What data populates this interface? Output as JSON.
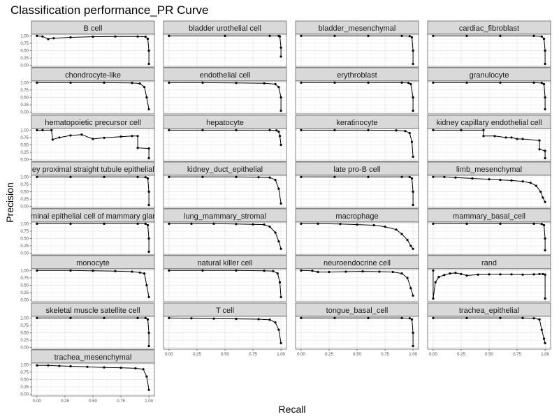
{
  "chart_data": {
    "type": "line",
    "title": "Classification performance_PR Curve",
    "xlabel": "Recall",
    "ylabel": "Precision",
    "xlim": [
      0,
      1
    ],
    "ylim": [
      0,
      1
    ],
    "x_ticks": [
      "0.00",
      "0.25",
      "0.50",
      "0.75",
      "1.00"
    ],
    "y_ticks": [
      "0.00",
      "0.25",
      "0.50",
      "0.75",
      "1.00"
    ],
    "grid": true,
    "facets": [
      {
        "name": "B cell",
        "points": [
          [
            0,
            1
          ],
          [
            0.05,
            0.98
          ],
          [
            0.1,
            0.89
          ],
          [
            0.15,
            0.92
          ],
          [
            0.3,
            0.95
          ],
          [
            0.5,
            0.97
          ],
          [
            0.7,
            0.98
          ],
          [
            0.9,
            0.98
          ],
          [
            0.97,
            0.97
          ],
          [
            0.99,
            0.9
          ],
          [
            1,
            0.5
          ],
          [
            1,
            0.05
          ]
        ]
      },
      {
        "name": "bladder urothelial cell",
        "points": [
          [
            0,
            1
          ],
          [
            0.5,
            1
          ],
          [
            0.9,
            1
          ],
          [
            0.98,
            1
          ],
          [
            0.99,
            0.98
          ],
          [
            1,
            0.6
          ],
          [
            1,
            0.3
          ]
        ]
      },
      {
        "name": "bladder_mesenchymal",
        "points": [
          [
            0,
            1
          ],
          [
            0.3,
            1
          ],
          [
            0.6,
            1
          ],
          [
            0.9,
            1
          ],
          [
            0.97,
            0.99
          ],
          [
            0.99,
            0.95
          ],
          [
            1,
            0.5
          ],
          [
            1,
            0.05
          ]
        ]
      },
      {
        "name": "cardiac_fibroblast",
        "points": [
          [
            0,
            1
          ],
          [
            0.3,
            1
          ],
          [
            0.6,
            1
          ],
          [
            0.9,
            1
          ],
          [
            0.97,
            0.98
          ],
          [
            0.99,
            0.9
          ],
          [
            1,
            0.5
          ],
          [
            1,
            0.05
          ]
        ]
      },
      {
        "name": "chondrocyte-like",
        "points": [
          [
            0,
            1
          ],
          [
            0.3,
            1
          ],
          [
            0.6,
            1
          ],
          [
            0.85,
            0.99
          ],
          [
            0.92,
            0.97
          ],
          [
            0.96,
            0.85
          ],
          [
            0.98,
            0.5
          ],
          [
            1,
            0.1
          ]
        ]
      },
      {
        "name": "endothelial cell",
        "points": [
          [
            0,
            1
          ],
          [
            0.3,
            1
          ],
          [
            0.6,
            0.99
          ],
          [
            0.85,
            0.98
          ],
          [
            0.95,
            0.95
          ],
          [
            0.98,
            0.85
          ],
          [
            1,
            0.5
          ],
          [
            1,
            0.05
          ]
        ]
      },
      {
        "name": "erythroblast",
        "points": [
          [
            0,
            1
          ],
          [
            0.3,
            1
          ],
          [
            0.6,
            1
          ],
          [
            0.9,
            1
          ],
          [
            0.96,
            0.99
          ],
          [
            0.98,
            0.95
          ],
          [
            1,
            0.5
          ],
          [
            1,
            0.05
          ]
        ]
      },
      {
        "name": "granulocyte",
        "points": [
          [
            0,
            1
          ],
          [
            0.3,
            1
          ],
          [
            0.6,
            1
          ],
          [
            0.9,
            1
          ],
          [
            0.97,
            0.99
          ],
          [
            0.99,
            0.95
          ],
          [
            1,
            0.5
          ],
          [
            1,
            0.1
          ]
        ]
      },
      {
        "name": "hematopoietic precursor cell",
        "points": [
          [
            0,
            1
          ],
          [
            0.05,
            1
          ],
          [
            0.13,
            1
          ],
          [
            0.14,
            0.68
          ],
          [
            0.2,
            0.75
          ],
          [
            0.3,
            0.82
          ],
          [
            0.4,
            0.85
          ],
          [
            0.5,
            0.7
          ],
          [
            0.6,
            0.74
          ],
          [
            0.75,
            0.78
          ],
          [
            0.85,
            0.8
          ],
          [
            0.9,
            0.8
          ],
          [
            0.9,
            0.4
          ],
          [
            1,
            0.38
          ],
          [
            1,
            0.05
          ]
        ]
      },
      {
        "name": "hepatocyte",
        "points": [
          [
            0,
            1
          ],
          [
            0.3,
            1
          ],
          [
            0.6,
            1
          ],
          [
            0.9,
            1
          ],
          [
            0.96,
            0.99
          ],
          [
            0.98,
            0.95
          ],
          [
            0.99,
            0.8
          ],
          [
            1,
            0.5
          ]
        ]
      },
      {
        "name": "keratinocyte",
        "points": [
          [
            0,
            1
          ],
          [
            0.3,
            1
          ],
          [
            0.6,
            1
          ],
          [
            0.85,
            0.99
          ],
          [
            0.93,
            0.97
          ],
          [
            0.97,
            0.9
          ],
          [
            0.99,
            0.6
          ],
          [
            1,
            0.1
          ]
        ]
      },
      {
        "name": "kidney capillary endothelial cell",
        "points": [
          [
            0,
            1
          ],
          [
            0.25,
            1
          ],
          [
            0.45,
            1
          ],
          [
            0.45,
            0.8
          ],
          [
            0.55,
            0.8
          ],
          [
            0.65,
            0.75
          ],
          [
            0.7,
            0.75
          ],
          [
            0.75,
            0.7
          ],
          [
            0.8,
            0.7
          ],
          [
            0.95,
            0.65
          ],
          [
            0.95,
            0.35
          ],
          [
            1,
            0.3
          ],
          [
            1,
            0.05
          ]
        ]
      },
      {
        "name": "kidney proximal straight tubule epithelial cell",
        "points": [
          [
            0,
            1
          ],
          [
            0.3,
            1
          ],
          [
            0.6,
            1
          ],
          [
            0.9,
            1
          ],
          [
            0.97,
            0.99
          ],
          [
            0.99,
            0.95
          ],
          [
            1,
            0.5
          ],
          [
            1,
            0.05
          ]
        ]
      },
      {
        "name": "kidney_duct_epithelial",
        "points": [
          [
            0,
            1
          ],
          [
            0.3,
            1
          ],
          [
            0.6,
            1
          ],
          [
            0.8,
            0.99
          ],
          [
            0.9,
            0.98
          ],
          [
            0.95,
            0.9
          ],
          [
            0.98,
            0.6
          ],
          [
            1,
            0.1
          ]
        ]
      },
      {
        "name": "late pro-B cell",
        "points": [
          [
            0,
            1
          ],
          [
            0.3,
            1
          ],
          [
            0.6,
            1
          ],
          [
            0.9,
            1
          ],
          [
            0.97,
            1
          ],
          [
            0.99,
            0.95
          ],
          [
            1,
            0.5
          ],
          [
            1,
            0.05
          ]
        ]
      },
      {
        "name": "limb_mesenchymal",
        "points": [
          [
            0,
            1
          ],
          [
            0.1,
            1
          ],
          [
            0.2,
            0.98
          ],
          [
            0.35,
            0.95
          ],
          [
            0.5,
            0.92
          ],
          [
            0.6,
            0.9
          ],
          [
            0.7,
            0.88
          ],
          [
            0.8,
            0.85
          ],
          [
            0.87,
            0.8
          ],
          [
            0.92,
            0.7
          ],
          [
            0.96,
            0.5
          ],
          [
            0.98,
            0.3
          ],
          [
            1,
            0.15
          ]
        ]
      },
      {
        "name": "luminal epithelial cell of mammary gland",
        "points": [
          [
            0,
            1
          ],
          [
            0.3,
            1
          ],
          [
            0.6,
            1
          ],
          [
            0.9,
            1
          ],
          [
            0.97,
            1
          ],
          [
            0.99,
            0.95
          ],
          [
            1,
            0.5
          ],
          [
            1,
            0.05
          ]
        ]
      },
      {
        "name": "lung_mammary_stromal",
        "points": [
          [
            0,
            1
          ],
          [
            0.2,
            1
          ],
          [
            0.4,
            1
          ],
          [
            0.6,
            0.99
          ],
          [
            0.75,
            0.98
          ],
          [
            0.85,
            0.97
          ],
          [
            0.9,
            0.9
          ],
          [
            0.95,
            0.7
          ],
          [
            0.98,
            0.4
          ],
          [
            1,
            0.15
          ]
        ]
      },
      {
        "name": "macrophage",
        "points": [
          [
            0,
            1
          ],
          [
            0.15,
            1
          ],
          [
            0.35,
            0.99
          ],
          [
            0.5,
            0.97
          ],
          [
            0.65,
            0.95
          ],
          [
            0.75,
            0.9
          ],
          [
            0.85,
            0.8
          ],
          [
            0.9,
            0.65
          ],
          [
            0.95,
            0.45
          ],
          [
            0.98,
            0.25
          ],
          [
            1,
            0.15
          ]
        ]
      },
      {
        "name": "mammary_basal_cell",
        "points": [
          [
            0,
            1
          ],
          [
            0.3,
            1
          ],
          [
            0.6,
            1
          ],
          [
            0.9,
            1
          ],
          [
            0.97,
            0.99
          ],
          [
            0.99,
            0.95
          ],
          [
            1,
            0.5
          ],
          [
            1,
            0.1
          ]
        ]
      },
      {
        "name": "monocyte",
        "points": [
          [
            0,
            1
          ],
          [
            0.3,
            1
          ],
          [
            0.5,
            0.99
          ],
          [
            0.7,
            0.98
          ],
          [
            0.85,
            0.96
          ],
          [
            0.92,
            0.93
          ],
          [
            0.96,
            0.9
          ],
          [
            0.98,
            0.5
          ],
          [
            1,
            0.1
          ]
        ]
      },
      {
        "name": "natural killer cell",
        "points": [
          [
            0,
            1
          ],
          [
            0.3,
            1
          ],
          [
            0.6,
            1
          ],
          [
            0.85,
            0.99
          ],
          [
            0.93,
            0.98
          ],
          [
            0.97,
            0.9
          ],
          [
            0.99,
            0.6
          ],
          [
            1,
            0.1
          ]
        ]
      },
      {
        "name": "neuroendocrine cell",
        "points": [
          [
            0,
            1
          ],
          [
            0.1,
            0.99
          ],
          [
            0.15,
            0.95
          ],
          [
            0.25,
            0.95
          ],
          [
            0.4,
            0.96
          ],
          [
            0.55,
            0.97
          ],
          [
            0.7,
            0.96
          ],
          [
            0.82,
            0.95
          ],
          [
            0.9,
            0.9
          ],
          [
            0.95,
            0.75
          ],
          [
            0.98,
            0.4
          ],
          [
            1,
            0.15
          ]
        ]
      },
      {
        "name": "rand",
        "points": [
          [
            0,
            1
          ],
          [
            0,
            0.05
          ],
          [
            0.02,
            0.6
          ],
          [
            0.05,
            0.78
          ],
          [
            0.1,
            0.85
          ],
          [
            0.15,
            0.9
          ],
          [
            0.2,
            0.92
          ],
          [
            0.25,
            0.88
          ],
          [
            0.3,
            0.83
          ],
          [
            0.4,
            0.86
          ],
          [
            0.5,
            0.87
          ],
          [
            0.6,
            0.87
          ],
          [
            0.7,
            0.87
          ],
          [
            0.8,
            0.86
          ],
          [
            0.9,
            0.87
          ],
          [
            0.95,
            0.88
          ],
          [
            0.98,
            0.88
          ],
          [
            1,
            0.86
          ],
          [
            1,
            0.05
          ]
        ]
      },
      {
        "name": "skeletal muscle satellite cell",
        "points": [
          [
            0,
            1
          ],
          [
            0.3,
            1
          ],
          [
            0.6,
            1
          ],
          [
            0.9,
            1
          ],
          [
            0.97,
            1
          ],
          [
            0.99,
            0.95
          ],
          [
            1,
            0.5
          ],
          [
            1,
            0.05
          ]
        ]
      },
      {
        "name": "T cell",
        "points": [
          [
            0,
            1
          ],
          [
            0.2,
            0.99
          ],
          [
            0.4,
            0.98
          ],
          [
            0.6,
            0.97
          ],
          [
            0.8,
            0.96
          ],
          [
            0.9,
            0.94
          ],
          [
            0.95,
            0.85
          ],
          [
            0.98,
            0.6
          ],
          [
            1,
            0.15
          ]
        ]
      },
      {
        "name": "tongue_basal_cell",
        "points": [
          [
            0,
            1
          ],
          [
            0.3,
            1
          ],
          [
            0.6,
            1
          ],
          [
            0.9,
            1
          ],
          [
            0.97,
            0.99
          ],
          [
            0.99,
            0.95
          ],
          [
            1,
            0.5
          ],
          [
            1,
            0.05
          ]
        ]
      },
      {
        "name": "trachea_epithelial",
        "points": [
          [
            0,
            1
          ],
          [
            0.3,
            1
          ],
          [
            0.6,
            1
          ],
          [
            0.8,
            1
          ],
          [
            0.9,
            0.99
          ],
          [
            0.95,
            0.95
          ],
          [
            0.97,
            0.6
          ],
          [
            0.99,
            0.3
          ],
          [
            1,
            0.15
          ]
        ]
      },
      {
        "name": "trachea_mesenchymal",
        "points": [
          [
            0,
            0.98
          ],
          [
            0.1,
            0.98
          ],
          [
            0.2,
            0.96
          ],
          [
            0.3,
            0.95
          ],
          [
            0.45,
            0.93
          ],
          [
            0.6,
            0.91
          ],
          [
            0.75,
            0.9
          ],
          [
            0.88,
            0.88
          ],
          [
            0.95,
            0.85
          ],
          [
            0.98,
            0.6
          ],
          [
            1,
            0.15
          ]
        ]
      }
    ]
  }
}
